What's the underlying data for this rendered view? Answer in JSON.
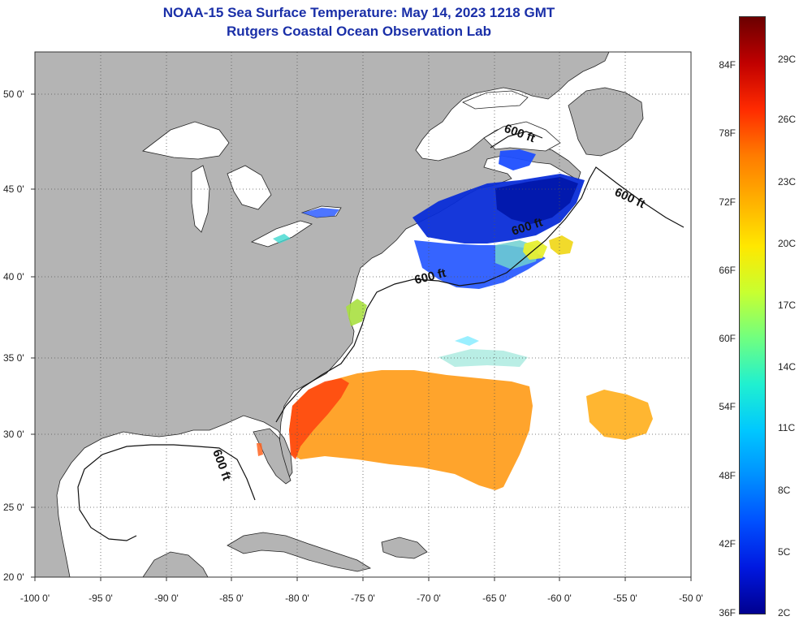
{
  "header": {
    "title": "NOAA-15 Sea Surface Temperature:  May 14, 2023 1218 GMT",
    "subtitle": "Rutgers Coastal Ocean Observation Lab"
  },
  "axes": {
    "lon_labels": [
      "-100 0'",
      "-95 0'",
      "-90 0'",
      "-85 0'",
      "-80 0'",
      "-75 0'",
      "-70 0'",
      "-65 0'",
      "-60 0'",
      "-55 0'",
      "-50 0'"
    ],
    "lat_labels": [
      "50 0'",
      "45 0'",
      "40 0'",
      "35 0'",
      "30 0'",
      "25 0'",
      "20 0'"
    ]
  },
  "contours": {
    "label": "600 ft",
    "labels": [
      "600 ft",
      "600 ft",
      "600 ft",
      "600 ft",
      "600 ft"
    ]
  },
  "colorbar": {
    "fahrenheit": [
      "84F",
      "78F",
      "72F",
      "66F",
      "60F",
      "54F",
      "48F",
      "42F",
      "36F"
    ],
    "celsius": [
      "29C",
      "26C",
      "23C",
      "20C",
      "17C",
      "14C",
      "11C",
      "8C",
      "5C",
      "2C"
    ],
    "colors": [
      "#6b0000",
      "#c00000",
      "#ff2a00",
      "#ff7a00",
      "#ffb000",
      "#ffe800",
      "#c8ff30",
      "#70ff80",
      "#20f0d0",
      "#00c8ff",
      "#0090ff",
      "#0050ff",
      "#0018e0",
      "#000090"
    ]
  },
  "palette": {
    "land": "#b4b4b4",
    "water": "#ffffff",
    "title": "#1a2fa8"
  }
}
